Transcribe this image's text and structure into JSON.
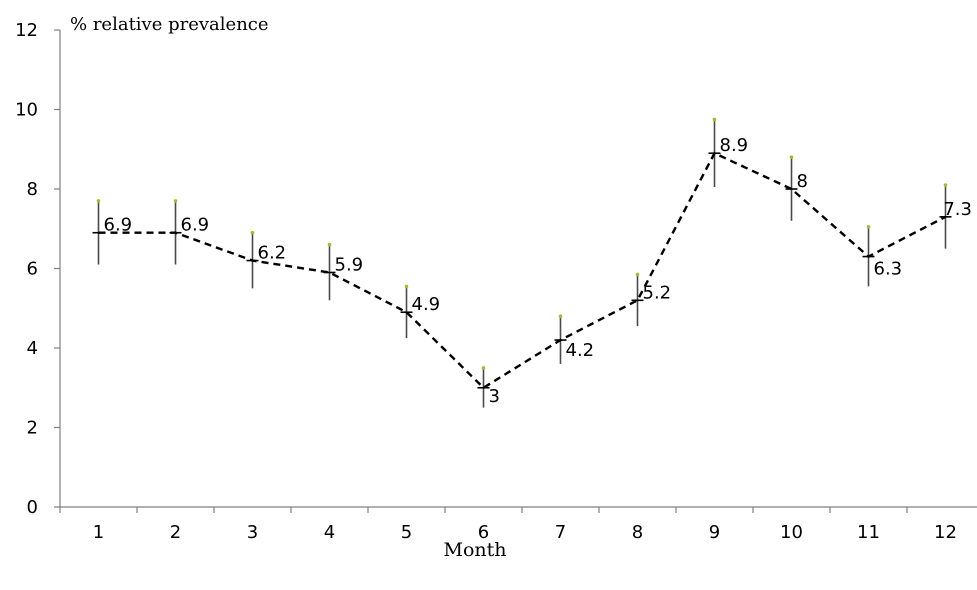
{
  "chart_data": {
    "type": "line",
    "ylabel": "% relative prevalence",
    "xlabel": "Month",
    "categories": [
      "1",
      "2",
      "3",
      "4",
      "5",
      "6",
      "7",
      "8",
      "9",
      "10",
      "11",
      "12"
    ],
    "values": [
      6.9,
      6.9,
      6.2,
      5.9,
      4.9,
      3,
      4.2,
      5.2,
      8.9,
      8,
      6.3,
      7.3
    ],
    "data_labels": [
      "6.9",
      "6.9",
      "6.2",
      "5.9",
      "4.9",
      "3",
      "4.2",
      "5.2",
      "8.9",
      "8",
      "6.3",
      "7.3"
    ],
    "error_bars": [
      0.8,
      0.8,
      0.7,
      0.7,
      0.65,
      0.5,
      0.6,
      0.65,
      0.85,
      0.8,
      0.75,
      0.8
    ],
    "yticks": [
      "0",
      "2",
      "4",
      "6",
      "8",
      "10",
      "12"
    ],
    "ylim": [
      0,
      12
    ],
    "grid": false,
    "legend": "none",
    "line_style": "dashed",
    "colors": {
      "line": "#000000",
      "axis": "#808080",
      "error_bar": "#4a4a4a",
      "error_cap": "#a8b832"
    }
  }
}
